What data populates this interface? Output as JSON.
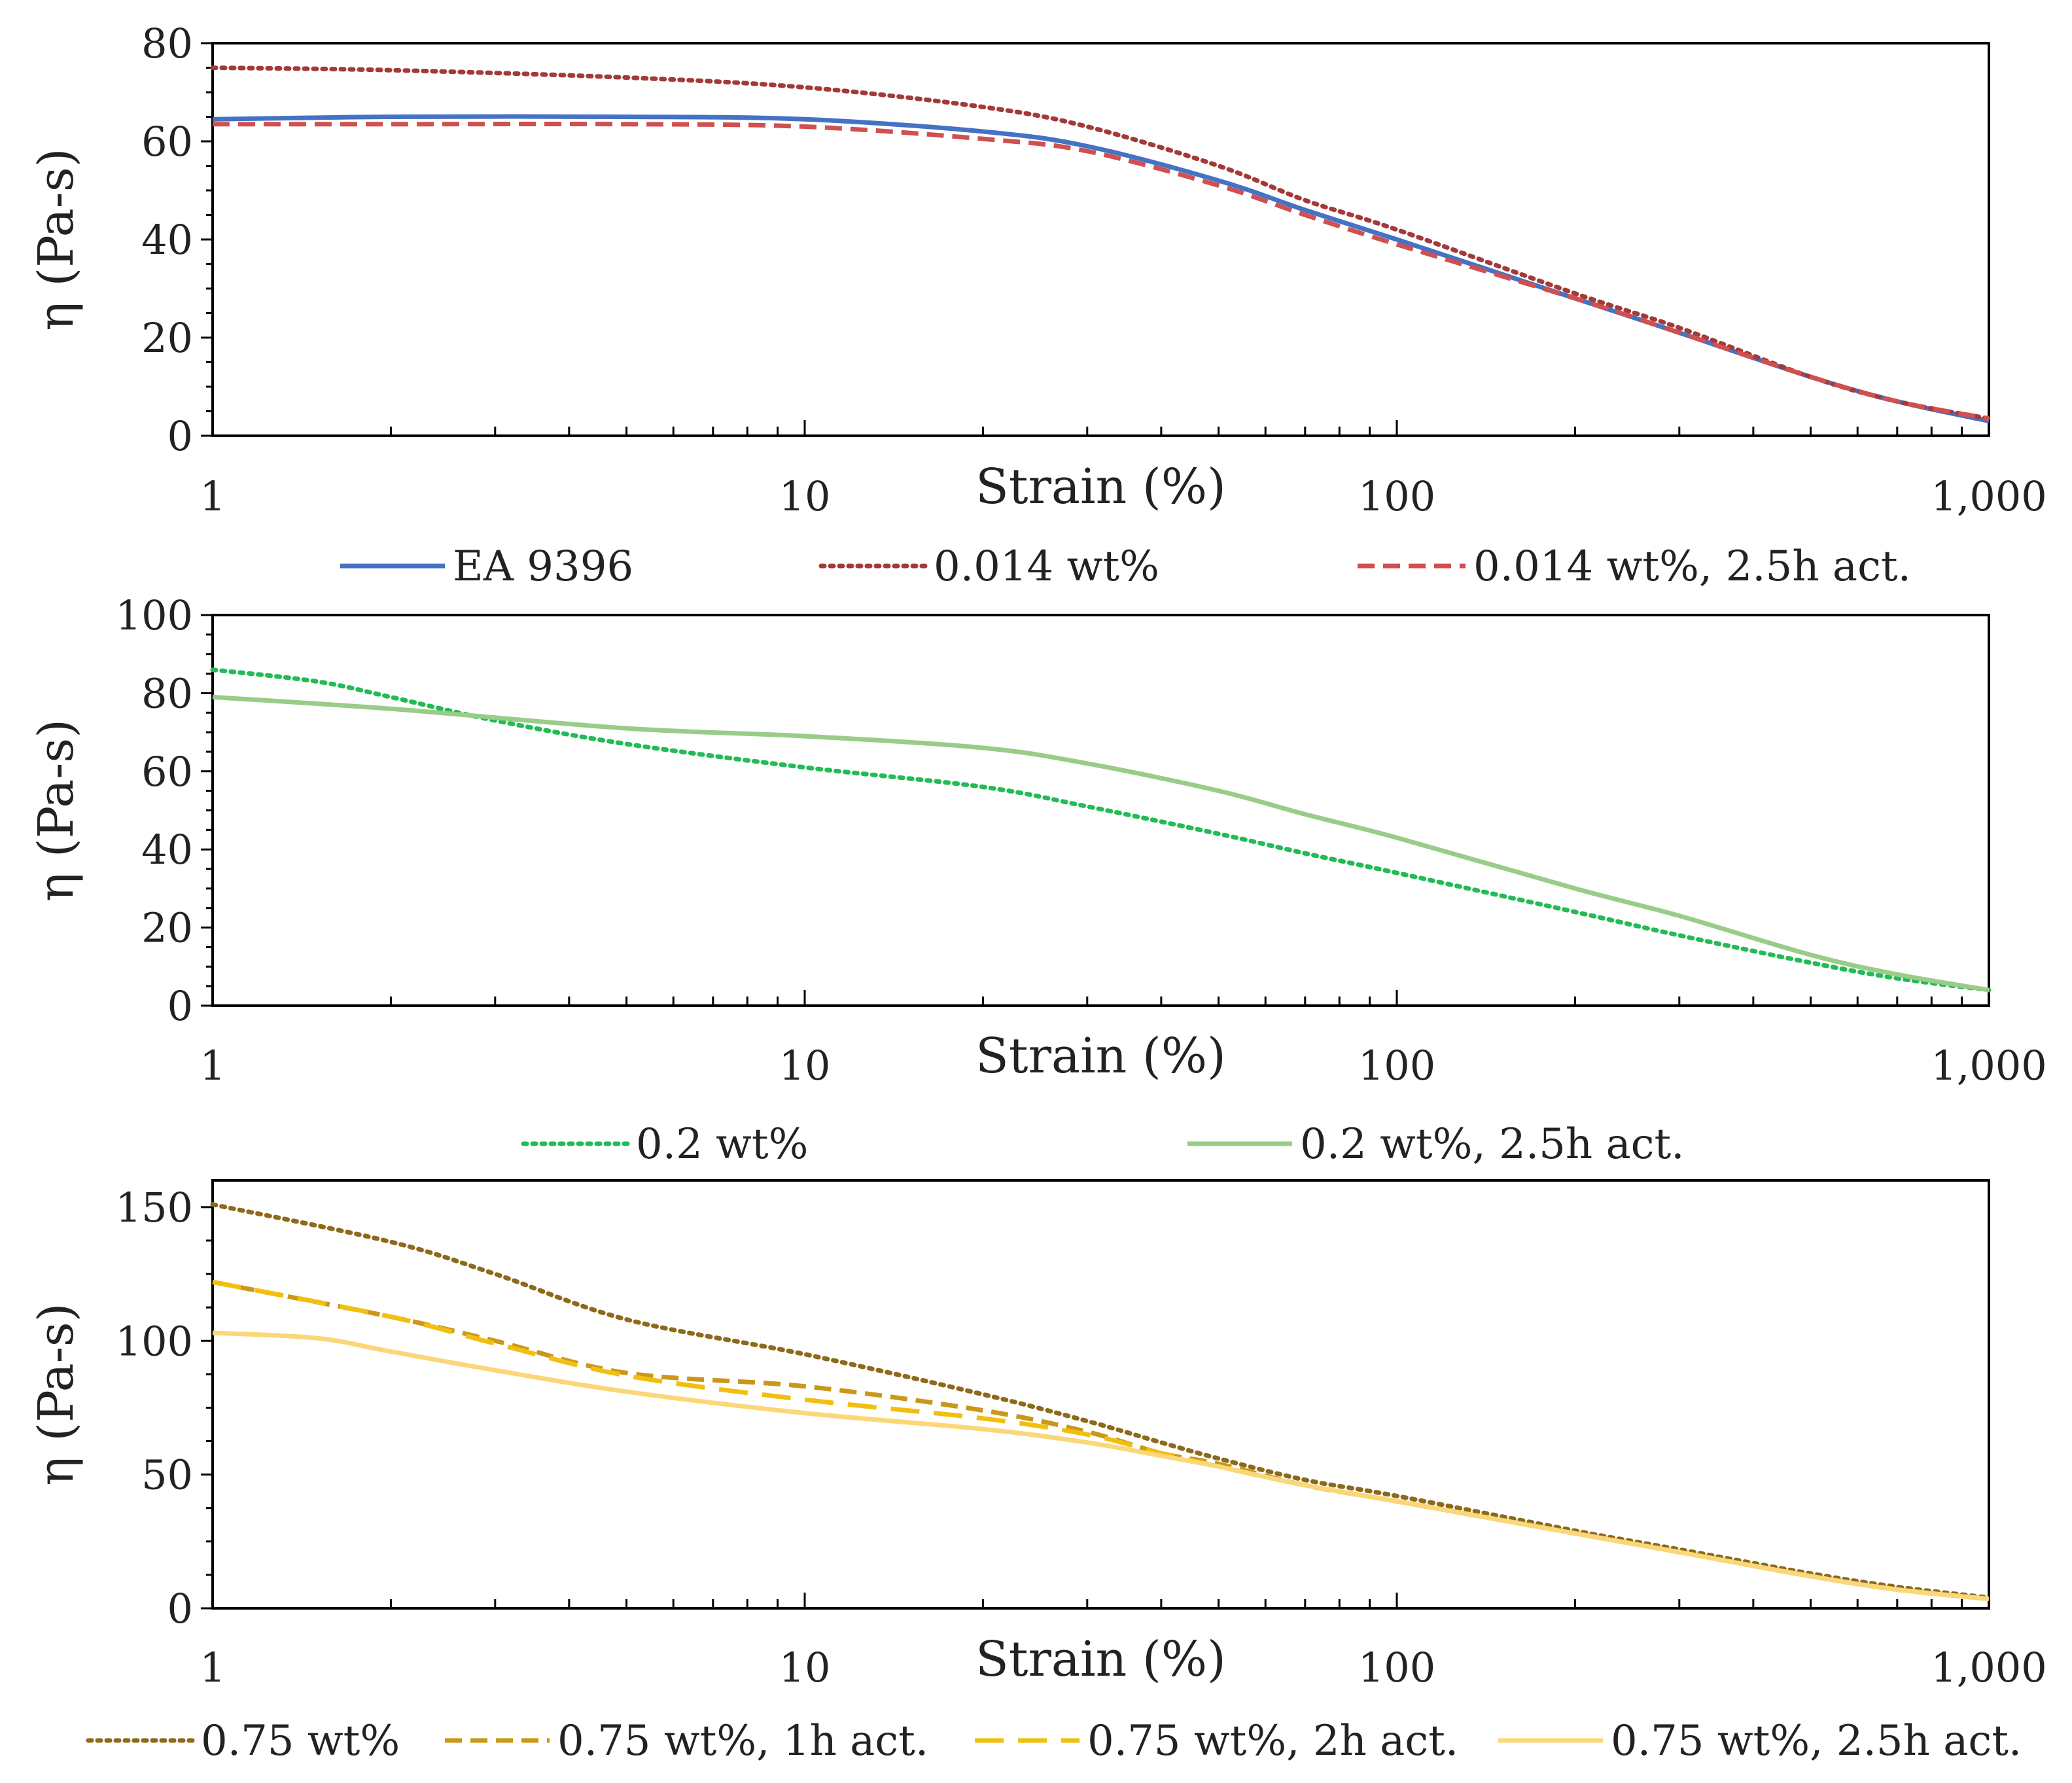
{
  "chart_data": [
    {
      "type": "line",
      "xscale": "log",
      "xlabel": "Strain (%)",
      "ylabel": "η (Pa-s)",
      "xlim": [
        1,
        1000
      ],
      "ylim": [
        0,
        80
      ],
      "yticks": [
        0,
        20,
        40,
        60,
        80
      ],
      "xticks": [
        1,
        10,
        100,
        1000
      ],
      "xtick_labels": [
        "1",
        "10",
        "100",
        "1,000"
      ],
      "ytick_labels": [
        "0",
        "20",
        "40",
        "60",
        "80"
      ],
      "legend_position": "bottom",
      "series": [
        {
          "name": "EA 9396",
          "color": "#4472c4",
          "style": "solid",
          "x": [
            1,
            2,
            5,
            10,
            20,
            30,
            50,
            70,
            100,
            200,
            300,
            500,
            700,
            1000
          ],
          "y": [
            64.5,
            65,
            65,
            64.5,
            62,
            59,
            52,
            46,
            40,
            28,
            21,
            12,
            7,
            3
          ]
        },
        {
          "name": "0.014 wt%",
          "color": "#a33a3a",
          "style": "dotted",
          "x": [
            1,
            2,
            5,
            10,
            20,
            30,
            50,
            70,
            100,
            200,
            300,
            500,
            700,
            1000
          ],
          "y": [
            75,
            74.5,
            73,
            71,
            67,
            63,
            55,
            48,
            42,
            29,
            22,
            12,
            7,
            3.5
          ]
        },
        {
          "name": "0.014 wt%, 2.5h act.",
          "color": "#d05050",
          "style": "dashed",
          "x": [
            1,
            2,
            5,
            10,
            20,
            30,
            50,
            70,
            100,
            200,
            300,
            500,
            700,
            1000
          ],
          "y": [
            63.5,
            63.5,
            63.5,
            63,
            60.5,
            58,
            51,
            45,
            39,
            28,
            21,
            12,
            7,
            3.5
          ]
        }
      ]
    },
    {
      "type": "line",
      "xscale": "log",
      "xlabel": "Strain (%)",
      "ylabel": "η (Pa-s)",
      "xlim": [
        1,
        1000
      ],
      "ylim": [
        0,
        100
      ],
      "yticks": [
        0,
        20,
        40,
        60,
        80,
        100
      ],
      "xticks": [
        1,
        10,
        100,
        1000
      ],
      "xtick_labels": [
        "1",
        "10",
        "100",
        "1,000"
      ],
      "ytick_labels": [
        "0",
        "20",
        "40",
        "60",
        "80",
        "100"
      ],
      "legend_position": "bottom",
      "series": [
        {
          "name": "0.2 wt%",
          "color": "#22bb55",
          "style": "dotted",
          "x": [
            1,
            1.5,
            2,
            3,
            5,
            10,
            20,
            30,
            50,
            70,
            100,
            200,
            300,
            500,
            700,
            1000
          ],
          "y": [
            86,
            83,
            79,
            73,
            67,
            61,
            56,
            51,
            44,
            39,
            34,
            24,
            18,
            11,
            7,
            4
          ]
        },
        {
          "name": "0.2 wt%, 2.5h act.",
          "color": "#99cc88",
          "style": "solid",
          "x": [
            1,
            2,
            5,
            10,
            20,
            30,
            50,
            70,
            100,
            200,
            300,
            500,
            700,
            1000
          ],
          "y": [
            79,
            76,
            71,
            69,
            66,
            62,
            55,
            49,
            43,
            30,
            23,
            13,
            8,
            4
          ]
        }
      ]
    },
    {
      "type": "line",
      "xscale": "log",
      "xlabel": "Strain (%)",
      "ylabel": "η (Pa-s)",
      "xlim": [
        1,
        1000
      ],
      "ylim": [
        0,
        160
      ],
      "yticks": [
        0,
        50,
        100,
        150
      ],
      "xticks": [
        1,
        10,
        100,
        1000
      ],
      "xtick_labels": [
        "1",
        "10",
        "100",
        "1,000"
      ],
      "ytick_labels": [
        "0",
        "50",
        "100",
        "150"
      ],
      "legend_position": "bottom",
      "series": [
        {
          "name": "0.75 wt%",
          "color": "#8c6a1a",
          "style": "dotted",
          "x": [
            1,
            2,
            3,
            5,
            10,
            20,
            30,
            40,
            50,
            70,
            100,
            200,
            300,
            500,
            700,
            1000
          ],
          "y": [
            151,
            137,
            125,
            108,
            95,
            80,
            70,
            62,
            56,
            48,
            42,
            29,
            22,
            13,
            8,
            4
          ]
        },
        {
          "name": "0.75 wt%, 1h act.",
          "color": "#c9981a",
          "style": "dashed",
          "x": [
            1,
            2,
            3,
            5,
            10,
            20,
            30,
            40,
            50,
            70,
            100,
            200,
            300,
            500,
            700,
            1000
          ],
          "y": [
            122,
            109,
            100,
            88,
            83,
            74,
            66,
            58,
            54,
            46,
            40,
            28,
            21,
            12,
            7,
            3.5
          ]
        },
        {
          "name": "0.75 wt%, 2h act.",
          "color": "#f2bf10",
          "style": "longdash",
          "x": [
            1,
            2,
            3,
            5,
            10,
            20,
            30,
            40,
            50,
            70,
            100,
            200,
            300,
            500,
            700,
            1000
          ],
          "y": [
            122,
            109,
            99,
            87,
            78,
            71,
            65,
            58,
            53,
            46,
            40,
            28,
            21,
            12,
            7,
            3.5
          ]
        },
        {
          "name": "0.75 wt%, 2.5h act.",
          "color": "#fad778",
          "style": "solid",
          "x": [
            1,
            1.5,
            2,
            3,
            5,
            10,
            20,
            30,
            40,
            50,
            70,
            100,
            200,
            300,
            500,
            700,
            1000
          ],
          "y": [
            103,
            101,
            96,
            89,
            81,
            73,
            67,
            62,
            57,
            53,
            46,
            40,
            28,
            21,
            12,
            7,
            3.5
          ]
        }
      ]
    }
  ]
}
